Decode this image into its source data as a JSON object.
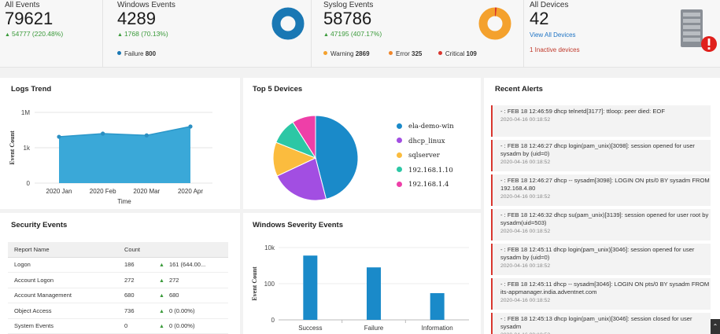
{
  "stats": {
    "all_events": {
      "label": "All Events",
      "value": "79621",
      "delta": "54777 (220.48%)"
    },
    "windows_events": {
      "label": "Windows Events",
      "value": "4289",
      "delta": "1768 (70.13%)",
      "legend": [
        {
          "label": "Failure",
          "count": "800",
          "color": "#1a78b4"
        }
      ]
    },
    "syslog_events": {
      "label": "Syslog Events",
      "value": "58786",
      "delta": "47195 (407.17%)",
      "legend": [
        {
          "label": "Warning",
          "count": "2869",
          "color": "#f4a12d"
        },
        {
          "label": "Error",
          "count": "325",
          "color": "#f0862a"
        },
        {
          "label": "Critical",
          "count": "109",
          "color": "#d9362f"
        }
      ]
    },
    "all_devices": {
      "label": "All Devices",
      "value": "42",
      "view_link": "View All Devices",
      "inactive": "1 Inactive devices"
    }
  },
  "icons": {
    "up": "triangle-up-icon",
    "server": "server-rack-icon",
    "alert": "alert-exclamation-icon"
  },
  "logs_trend": {
    "title": "Logs Trend",
    "chart_data": {
      "type": "area",
      "x": [
        "2020 Jan",
        "2020 Feb",
        "2020 Mar",
        "2020 Apr"
      ],
      "y_ticks": [
        "1M",
        "1k",
        "0"
      ],
      "xlabel": "Time",
      "ylabel": "Event Count",
      "values": [
        1.31,
        1.4,
        1.35,
        1.6
      ],
      "scale": "log",
      "grid": true,
      "color": "#3aa8d8"
    }
  },
  "top_devices": {
    "title": "Top 5 Devices",
    "chart_data": {
      "type": "pie",
      "labels": [
        "ela-demo-win",
        "dhcp_linux",
        "sqlserver",
        "192.168.1.10",
        "192.168.1.4"
      ],
      "values": [
        46,
        22,
        13,
        10,
        9
      ],
      "colors": [
        "#1a8ac9",
        "#a24ee2",
        "#fbbc3e",
        "#2cc7a5",
        "#ee3fa8"
      ]
    }
  },
  "security_events": {
    "title": "Security Events",
    "columns": [
      "Report Name",
      "Count"
    ],
    "rows": [
      {
        "name": "Logon",
        "count": "186",
        "trend": "161 (644.00...",
        "dir": "up"
      },
      {
        "name": "Account Logon",
        "count": "272",
        "trend": "272",
        "dir": "up"
      },
      {
        "name": "Account Management",
        "count": "680",
        "trend": "680",
        "dir": "up"
      },
      {
        "name": "Object Access",
        "count": "736",
        "trend": "0 (0.00%)",
        "dir": "up"
      },
      {
        "name": "System Events",
        "count": "0",
        "trend": "0 (0.00%)",
        "dir": "up"
      }
    ]
  },
  "windows_severity": {
    "title": "Windows Severity Events",
    "chart_data": {
      "type": "bar",
      "categories": [
        "Success",
        "Failure",
        "Information"
      ],
      "values": [
        3600,
        800,
        30
      ],
      "y_ticks": [
        "10k",
        "100",
        "0"
      ],
      "ylabel": "Event Count",
      "scale": "log",
      "color": "#1a8ac9"
    }
  },
  "recent_alerts": {
    "title": "Recent Alerts",
    "items": [
      {
        "msg": "- : FEB 18 12:46:59 dhcp telnetd[3177]: ttloop: peer died: EOF",
        "time": "2020-04-16 00:18:52"
      },
      {
        "msg": "- : FEB 18 12:46:27 dhcp login(pam_unix)[3098]: session opened for user sysadm by (uid=0)",
        "time": "2020-04-16 00:18:52"
      },
      {
        "msg": "- : FEB 18 12:46:27 dhcp -- sysadm[3098]: LOGIN ON pts/0 BY sysadm FROM 192.168.4.80",
        "time": "2020-04-16 00:18:52"
      },
      {
        "msg": "- : FEB 18 12:46:32 dhcp su(pam_unix)[3139]: session opened for user root by sysadm(uid=503)",
        "time": "2020-04-16 00:18:52"
      },
      {
        "msg": "- : FEB 18 12:45:11 dhcp login(pam_unix)[3046]: session opened for user sysadm by (uid=0)",
        "time": "2020-04-16 00:18:52"
      },
      {
        "msg": "- : FEB 18 12:45:11 dhcp -- sysadm[3046]: LOGIN ON pts/0 BY sysadm FROM its-appmanager.india.adventnet.com",
        "time": "2020-04-16 00:18:52"
      },
      {
        "msg": "- : FEB 18 12:45:13 dhcp login(pam_unix)[3046]: session closed for user sysadm",
        "time": "2020-04-16 00:18:52"
      }
    ]
  }
}
